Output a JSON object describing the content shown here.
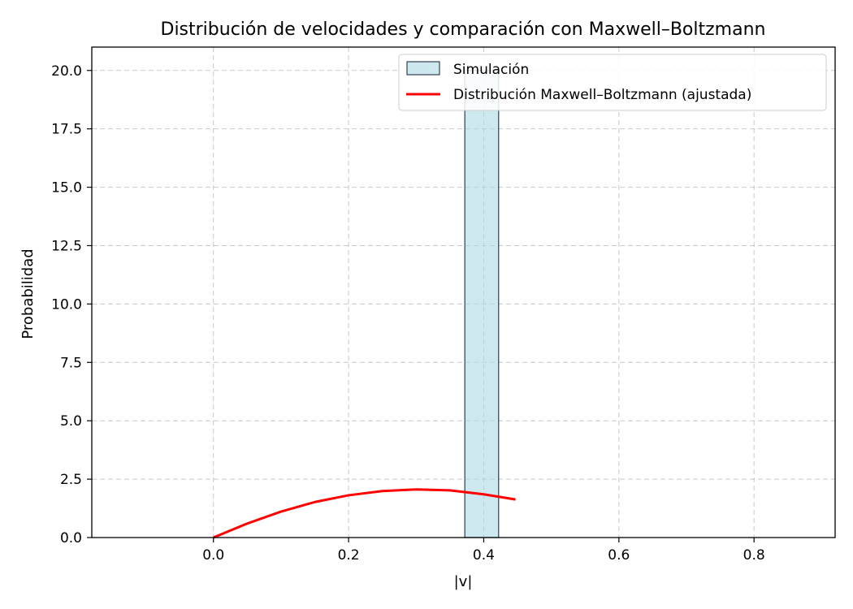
{
  "chart_data": {
    "type": "bar",
    "title": "Distribución de velocidades y comparación con Maxwell–Boltzmann",
    "xlabel": "|v|",
    "ylabel": "Probabilidad",
    "xlim": [
      -0.18,
      0.92
    ],
    "ylim": [
      0,
      21
    ],
    "x_ticks": [
      "0.0",
      "0.2",
      "0.4",
      "0.6",
      "0.8"
    ],
    "x_tick_values": [
      0.0,
      0.2,
      0.4,
      0.6,
      0.8
    ],
    "y_ticks": [
      "0.0",
      "2.5",
      "5.0",
      "7.5",
      "10.0",
      "12.5",
      "15.0",
      "17.5",
      "20.0"
    ],
    "y_tick_values": [
      0.0,
      2.5,
      5.0,
      7.5,
      10.0,
      12.5,
      15.0,
      17.5,
      20.0
    ],
    "grid": true,
    "legend_position": "top-right",
    "histogram": {
      "name": "Simulación",
      "color": "#ADD8E6",
      "edge_color": "#2f3f4f",
      "bins": [
        {
          "x0": 0.372,
          "x1": 0.422,
          "value": 20.0
        }
      ]
    },
    "line": {
      "name": "Distribución Maxwell–Boltzmann (ajustada)",
      "color": "#ff0000",
      "x": [
        0.0,
        0.05,
        0.1,
        0.15,
        0.2,
        0.25,
        0.3,
        0.35,
        0.4,
        0.447
      ],
      "y": [
        0.0,
        0.6,
        1.11,
        1.52,
        1.81,
        1.99,
        2.06,
        2.02,
        1.85,
        1.63
      ]
    }
  }
}
